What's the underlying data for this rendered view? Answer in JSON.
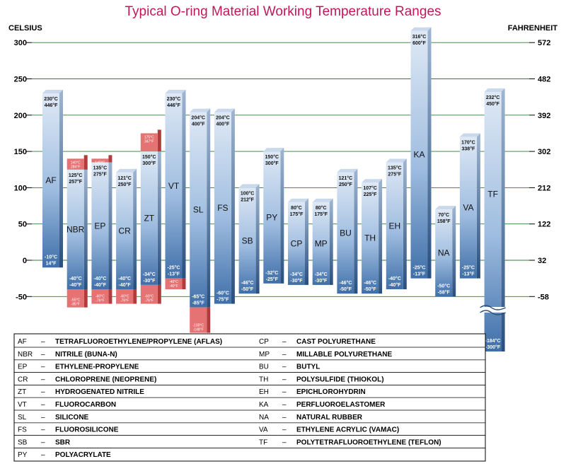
{
  "chart_data": {
    "type": "bar",
    "title": "Typical O-ring Material Working Temperature Ranges",
    "ylabel_left": "CELSIUS",
    "ylabel_right": "FAHRENHEIT",
    "ylim": [
      -50,
      300
    ],
    "grid": true,
    "ticks_celsius": [
      "300",
      "250",
      "200",
      "150",
      "100",
      "50",
      "0",
      "-50"
    ],
    "ticks_fahrenheit": [
      "572",
      "482",
      "392",
      "302",
      "212",
      "122",
      "32",
      "-58"
    ],
    "bar_colors": {
      "range": "#6f97c9",
      "extended": "#e57373"
    },
    "bars": [
      {
        "code": "AF",
        "min_c": -10,
        "max_c": 230,
        "top_label": [
          "230°C",
          "446°F"
        ],
        "bottom_label": [
          "-10°C",
          "14°F"
        ]
      },
      {
        "code": "NBR",
        "min_c": -40,
        "max_c": 125,
        "ext_low_c": -65,
        "ext_high_c": 140,
        "top_label": [
          "125°C",
          "257°F"
        ],
        "bottom_label": [
          "-40°C",
          "-40°F"
        ],
        "ext_top_label": [
          "140°C",
          "284°F"
        ],
        "ext_bottom_label": [
          "-65°C",
          "-85°F"
        ]
      },
      {
        "code": "EP",
        "min_c": -40,
        "max_c": 135,
        "ext_low_c": -60,
        "ext_high_c": 140,
        "top_label": [
          "135°C",
          "275°F"
        ],
        "bottom_label": [
          "-40°C",
          "-40°F"
        ],
        "ext_top_label": [
          "140°C",
          "284°F"
        ],
        "ext_bottom_label": [
          "-60°C",
          "-76°F"
        ]
      },
      {
        "code": "CR",
        "min_c": -40,
        "max_c": 121,
        "ext_low_c": -60,
        "top_label": [
          "121°C",
          "250°F"
        ],
        "bottom_label": [
          "-40°C",
          "-40°F"
        ],
        "ext_bottom_label": [
          "-60°C",
          "-76°F"
        ]
      },
      {
        "code": "ZT",
        "min_c": -34,
        "max_c": 150,
        "ext_low_c": -60,
        "ext_high_c": 175,
        "top_label": [
          "150°C",
          "300°F"
        ],
        "bottom_label": [
          "-34°C",
          "-30°F"
        ],
        "ext_top_label": [
          "175°C",
          "347°F"
        ],
        "ext_bottom_label": [
          "-60°C",
          "-76°F"
        ]
      },
      {
        "code": "VT",
        "min_c": -25,
        "max_c": 230,
        "ext_low_c": -40,
        "top_label": [
          "230°C",
          "446°F"
        ],
        "bottom_label": [
          "-25°C",
          "-13°F"
        ],
        "ext_bottom_label": [
          "-40°C",
          "-40°F"
        ]
      },
      {
        "code": "SL",
        "min_c": -65,
        "max_c": 204,
        "ext_low_c": -100,
        "top_label": [
          "204°C",
          "400°F"
        ],
        "bottom_label": [
          "-65°C",
          "-85°F"
        ],
        "ext_bottom_label": [
          "-100°C",
          "-148°F"
        ]
      },
      {
        "code": "FS",
        "min_c": -60,
        "max_c": 204,
        "top_label": [
          "204°C",
          "400°F"
        ],
        "bottom_label": [
          "-60°C",
          "-75°F"
        ]
      },
      {
        "code": "SB",
        "min_c": -46,
        "max_c": 100,
        "top_label": [
          "100°C",
          "212°F"
        ],
        "bottom_label": [
          "-46°C",
          "-50°F"
        ]
      },
      {
        "code": "PY",
        "min_c": -32,
        "max_c": 150,
        "top_label": [
          "150°C",
          "300°F"
        ],
        "bottom_label": [
          "-32°C",
          "-25°F"
        ]
      },
      {
        "code": "CP",
        "min_c": -34,
        "max_c": 80,
        "top_label": [
          "80°C",
          "175°F"
        ],
        "bottom_label": [
          "-34°C",
          "-30°F"
        ]
      },
      {
        "code": "MP",
        "min_c": -34,
        "max_c": 80,
        "top_label": [
          "80°C",
          "175°F"
        ],
        "bottom_label": [
          "-34°C",
          "-30°F"
        ]
      },
      {
        "code": "BU",
        "min_c": -46,
        "max_c": 121,
        "top_label": [
          "121°C",
          "250°F"
        ],
        "bottom_label": [
          "-46°C",
          "-50°F"
        ]
      },
      {
        "code": "TH",
        "min_c": -46,
        "max_c": 107,
        "top_label": [
          "107°C",
          "225°F"
        ],
        "bottom_label": [
          "-46°C",
          "-50°F"
        ]
      },
      {
        "code": "EH",
        "min_c": -40,
        "max_c": 135,
        "top_label": [
          "135°C",
          "275°F"
        ],
        "bottom_label": [
          "-40°C",
          "-40°F"
        ]
      },
      {
        "code": "KA",
        "min_c": -25,
        "max_c": 316,
        "top_label": [
          "316°C",
          "600°F"
        ],
        "bottom_label": [
          "-25°C",
          "-13°F"
        ]
      },
      {
        "code": "NA",
        "min_c": -50,
        "max_c": 70,
        "top_label": [
          "70°C",
          "158°F"
        ],
        "bottom_label": [
          "-50°C",
          "-58°F"
        ]
      },
      {
        "code": "VA",
        "min_c": -25,
        "max_c": 170,
        "top_label": [
          "170°C",
          "338°F"
        ],
        "bottom_label": [
          "-25°C",
          "-13°F"
        ]
      },
      {
        "code": "TF",
        "min_c": -184,
        "max_c": 232,
        "axis_break": true,
        "top_label": [
          "232°C",
          "450°F"
        ],
        "bottom_label": [
          "-184°C",
          "-300°F"
        ]
      }
    ],
    "legend": [
      {
        "abbr": "AF",
        "name": "TETRAFLUOROETHYLENE/PROPYLENE (AFLAS)"
      },
      {
        "abbr": "NBR",
        "name": "NITRILE (BUNA-N)"
      },
      {
        "abbr": "EP",
        "name": "ETHYLENE-PROPYLENE"
      },
      {
        "abbr": "CR",
        "name": "CHLOROPRENE (NEOPRENE)"
      },
      {
        "abbr": "ZT",
        "name": "HYDROGENATED NITRILE"
      },
      {
        "abbr": "VT",
        "name": "FLUOROCARBON"
      },
      {
        "abbr": "SL",
        "name": "SILICONE"
      },
      {
        "abbr": "FS",
        "name": "FLUOROSILICONE"
      },
      {
        "abbr": "SB",
        "name": "SBR"
      },
      {
        "abbr": "PY",
        "name": "POLYACRYLATE"
      },
      {
        "abbr": "CP",
        "name": "CAST POLYURETHANE"
      },
      {
        "abbr": "MP",
        "name": "MILLABLE POLYURETHANE"
      },
      {
        "abbr": "BU",
        "name": "BUTYL"
      },
      {
        "abbr": "TH",
        "name": "POLYSULFIDE (THIOKOL)"
      },
      {
        "abbr": "EH",
        "name": "EPICHLOROHYDRIN"
      },
      {
        "abbr": "KA",
        "name": "PERFLUOROELASTOMER"
      },
      {
        "abbr": "NA",
        "name": "NATURAL RUBBER"
      },
      {
        "abbr": "VA",
        "name": "ETHYLENE ACRYLIC (VAMAC)"
      },
      {
        "abbr": "TF",
        "name": "POLYTETRAFLUOROETHYLENE (TEFLON)"
      }
    ],
    "legend_separator": "–"
  }
}
